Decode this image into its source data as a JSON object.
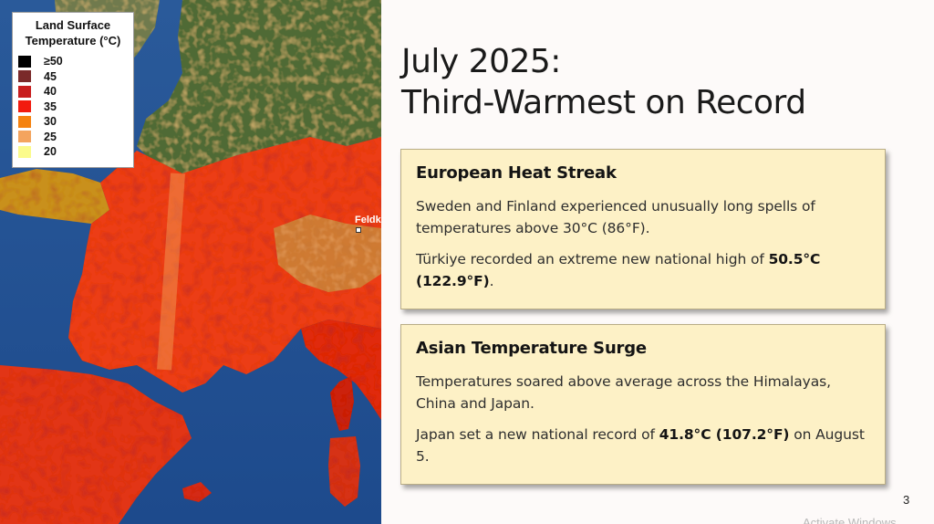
{
  "slide": {
    "title_line1": "July 2025:",
    "title_line2": "Third-Warmest on Record",
    "page_number": "3",
    "watermark": "Activate Windows"
  },
  "map": {
    "legend": {
      "title": "Land Surface Temperature (°C)",
      "items": [
        {
          "label": "≥50",
          "color": "#000000"
        },
        {
          "label": "45",
          "color": "#7a2a2a"
        },
        {
          "label": "40",
          "color": "#c81e1e"
        },
        {
          "label": "35",
          "color": "#f21b0f"
        },
        {
          "label": "30",
          "color": "#f5820f"
        },
        {
          "label": "25",
          "color": "#f4a45e"
        },
        {
          "label": "20",
          "color": "#fbfb8c"
        }
      ]
    },
    "city_label": "Feldk"
  },
  "cards": {
    "europe": {
      "heading": "European Heat Streak",
      "p1": "Sweden and Finland experienced unusually long spells of temperatures above 30°C (86°F).",
      "p2_prefix": "Türkiye recorded an extreme new national high of ",
      "p2_bold": "50.5°C (122.9°F)",
      "p2_suffix": "."
    },
    "asia": {
      "heading": "Asian Temperature Surge",
      "p1": "Temperatures soared above average across the Himalayas, China and Japan.",
      "p2_prefix": "Japan set a new national record of ",
      "p2_bold": "41.8°C (107.2°F)",
      "p2_suffix": " on August 5."
    }
  }
}
